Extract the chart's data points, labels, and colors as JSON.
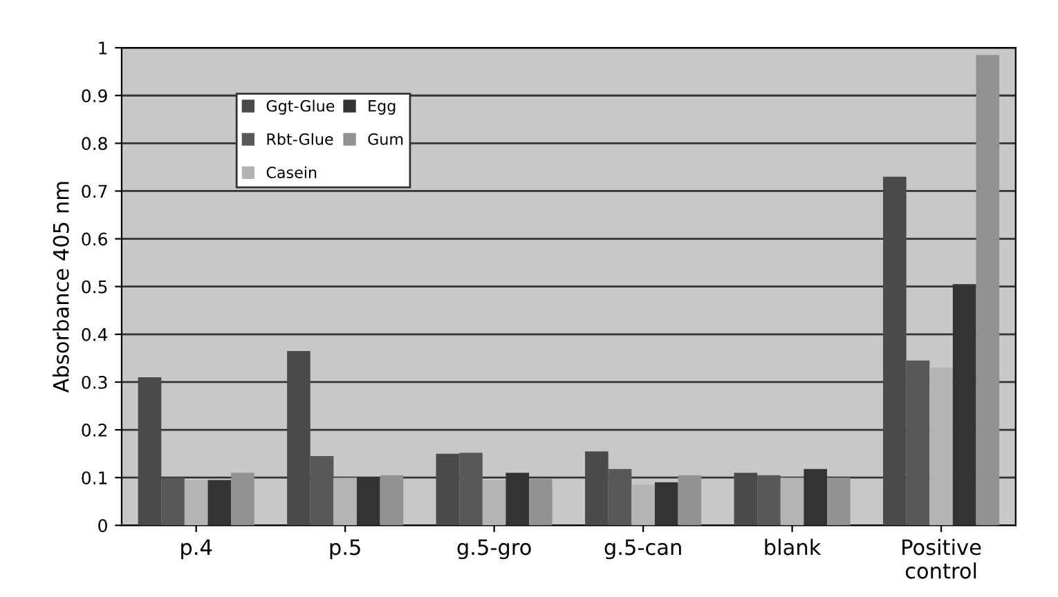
{
  "chart_data": {
    "type": "bar",
    "ylabel": "Absorbance 405 nm",
    "categories": [
      "p.4",
      "p.5",
      "g.5-gro",
      "g.5-can",
      "blank",
      "Positive\ncontrol"
    ],
    "series": [
      {
        "name": "Ggt-Glue",
        "color": "#4a4a4a",
        "values": [
          0.31,
          0.365,
          0.15,
          0.155,
          0.11,
          0.73
        ]
      },
      {
        "name": "Rbt-Glue",
        "color": "#585858",
        "values": [
          0.1,
          0.145,
          0.152,
          0.118,
          0.105,
          0.345
        ]
      },
      {
        "name": "Casein",
        "color": "#b4b4b4",
        "values": [
          0.095,
          0.1,
          0.095,
          0.085,
          0.1,
          0.33
        ]
      },
      {
        "name": "Egg",
        "color": "#333333",
        "values": [
          0.095,
          0.1,
          0.11,
          0.09,
          0.118,
          0.505
        ]
      },
      {
        "name": "Gum",
        "color": "#929292",
        "values": [
          0.11,
          0.105,
          0.097,
          0.105,
          0.1,
          0.985
        ]
      }
    ],
    "ylim": [
      0,
      1
    ],
    "yticks": [
      0,
      0.1,
      0.2,
      0.3,
      0.4,
      0.5,
      0.6,
      0.7,
      0.8,
      0.9,
      1
    ],
    "grid": "y",
    "legend": "top left"
  }
}
